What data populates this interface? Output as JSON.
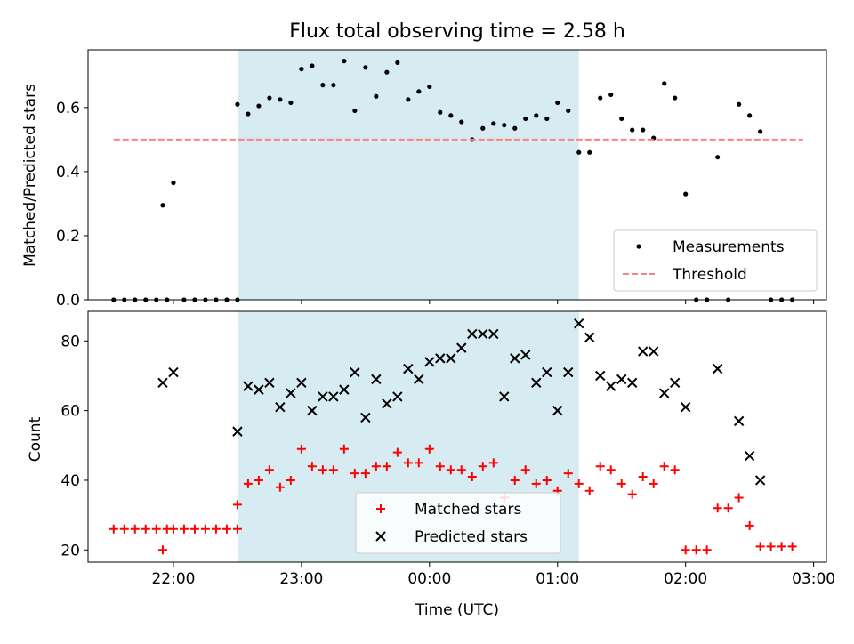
{
  "chart_data": [
    {
      "type": "scatter",
      "title": "Flux total observing time = 2.58 h",
      "xlabel": "",
      "ylabel": "Matched/Predicted stars",
      "ylim": [
        0,
        0.78
      ],
      "yticks": [
        "0.0",
        "0.2",
        "0.4",
        "0.6"
      ],
      "xlim": [
        "21:20",
        "03:06"
      ],
      "grid": false,
      "legend_placement": "lower-right",
      "shaded_span": [
        "22:30",
        "01:10"
      ],
      "shade_color": "#add8e6",
      "series": [
        {
          "name": "Measurements",
          "kind": "points",
          "color": "#000000",
          "points": [
            [
              "21:32",
              0.0
            ],
            [
              "21:37",
              0.0
            ],
            [
              "21:42",
              0.0
            ],
            [
              "21:47",
              0.0
            ],
            [
              "21:52",
              0.0
            ],
            [
              "21:57",
              0.0
            ],
            [
              "21:55",
              0.295
            ],
            [
              "22:00",
              0.365
            ],
            [
              "22:05",
              0.0
            ],
            [
              "22:10",
              0.0
            ],
            [
              "22:15",
              0.0
            ],
            [
              "22:20",
              0.0
            ],
            [
              "22:25",
              0.0
            ],
            [
              "22:30",
              0.0
            ],
            [
              "22:30",
              0.61
            ],
            [
              "22:35",
              0.58
            ],
            [
              "22:40",
              0.605
            ],
            [
              "22:45",
              0.63
            ],
            [
              "22:50",
              0.625
            ],
            [
              "22:55",
              0.615
            ],
            [
              "23:00",
              0.72
            ],
            [
              "23:05",
              0.73
            ],
            [
              "23:10",
              0.67
            ],
            [
              "23:15",
              0.67
            ],
            [
              "23:20",
              0.745
            ],
            [
              "23:25",
              0.59
            ],
            [
              "23:30",
              0.725
            ],
            [
              "23:35",
              0.635
            ],
            [
              "23:40",
              0.71
            ],
            [
              "23:45",
              0.74
            ],
            [
              "23:50",
              0.625
            ],
            [
              "23:55",
              0.65
            ],
            [
              "00:00",
              0.665
            ],
            [
              "00:05",
              0.585
            ],
            [
              "00:10",
              0.575
            ],
            [
              "00:15",
              0.555
            ],
            [
              "00:20",
              0.5
            ],
            [
              "00:25",
              0.535
            ],
            [
              "00:30",
              0.55
            ],
            [
              "00:35",
              0.545
            ],
            [
              "00:40",
              0.535
            ],
            [
              "00:45",
              0.565
            ],
            [
              "00:50",
              0.575
            ],
            [
              "00:55",
              0.565
            ],
            [
              "01:00",
              0.615
            ],
            [
              "01:05",
              0.59
            ],
            [
              "01:10",
              0.46
            ],
            [
              "01:15",
              0.46
            ],
            [
              "01:20",
              0.63
            ],
            [
              "01:25",
              0.64
            ],
            [
              "01:30",
              0.565
            ],
            [
              "01:35",
              0.53
            ],
            [
              "01:40",
              0.53
            ],
            [
              "01:45",
              0.505
            ],
            [
              "01:50",
              0.675
            ],
            [
              "01:55",
              0.63
            ],
            [
              "02:00",
              0.33
            ],
            [
              "02:05",
              0.0
            ],
            [
              "02:10",
              0.0
            ],
            [
              "02:15",
              0.445
            ],
            [
              "02:20",
              0.0
            ],
            [
              "02:25",
              0.61
            ],
            [
              "02:30",
              0.575
            ],
            [
              "02:35",
              0.525
            ],
            [
              "02:40",
              0.0
            ],
            [
              "02:45",
              0.0
            ],
            [
              "02:50",
              0.0
            ]
          ]
        },
        {
          "name": "Threshold",
          "kind": "dashed-line",
          "color": "#ff8080",
          "points": [
            [
              "21:32",
              0.5
            ],
            [
              "02:55",
              0.5
            ]
          ]
        }
      ]
    },
    {
      "type": "scatter",
      "title": "",
      "xlabel": "Time (UTC)",
      "ylabel": "Count",
      "ylim": [
        16.5,
        88.5
      ],
      "yticks": [
        "20",
        "40",
        "60",
        "80"
      ],
      "xlim": [
        "21:20",
        "03:06"
      ],
      "xticks": [
        "22:00",
        "23:00",
        "00:00",
        "01:00",
        "02:00",
        "03:00"
      ],
      "grid": false,
      "legend_placement": "lower-center",
      "shaded_span": [
        "22:30",
        "01:10"
      ],
      "shade_color": "#add8e6",
      "series": [
        {
          "name": "Matched stars",
          "kind": "plus",
          "color": "#ff0000",
          "points": [
            [
              "21:32",
              26
            ],
            [
              "21:37",
              26
            ],
            [
              "21:42",
              26
            ],
            [
              "21:47",
              26
            ],
            [
              "21:52",
              26
            ],
            [
              "21:57",
              26
            ],
            [
              "21:55",
              20
            ],
            [
              "22:00",
              26
            ],
            [
              "22:05",
              26
            ],
            [
              "22:10",
              26
            ],
            [
              "22:15",
              26
            ],
            [
              "22:20",
              26
            ],
            [
              "22:25",
              26
            ],
            [
              "22:30",
              26
            ],
            [
              "22:30",
              33
            ],
            [
              "22:35",
              39
            ],
            [
              "22:40",
              40
            ],
            [
              "22:45",
              43
            ],
            [
              "22:50",
              38
            ],
            [
              "22:55",
              40
            ],
            [
              "23:00",
              49
            ],
            [
              "23:05",
              44
            ],
            [
              "23:10",
              43
            ],
            [
              "23:15",
              43
            ],
            [
              "23:20",
              49
            ],
            [
              "23:25",
              42
            ],
            [
              "23:30",
              42
            ],
            [
              "23:35",
              44
            ],
            [
              "23:40",
              44
            ],
            [
              "23:45",
              48
            ],
            [
              "23:50",
              45
            ],
            [
              "23:55",
              45
            ],
            [
              "00:00",
              49
            ],
            [
              "00:05",
              44
            ],
            [
              "00:10",
              43
            ],
            [
              "00:15",
              43
            ],
            [
              "00:20",
              41
            ],
            [
              "00:25",
              44
            ],
            [
              "00:30",
              45
            ],
            [
              "00:35",
              35
            ],
            [
              "00:40",
              40
            ],
            [
              "00:45",
              43
            ],
            [
              "00:50",
              39
            ],
            [
              "00:55",
              40
            ],
            [
              "01:00",
              37
            ],
            [
              "01:05",
              42
            ],
            [
              "01:10",
              39
            ],
            [
              "01:15",
              37
            ],
            [
              "01:20",
              44
            ],
            [
              "01:25",
              43
            ],
            [
              "01:30",
              39
            ],
            [
              "01:35",
              36
            ],
            [
              "01:40",
              41
            ],
            [
              "01:45",
              39
            ],
            [
              "01:50",
              44
            ],
            [
              "01:55",
              43
            ],
            [
              "02:00",
              20
            ],
            [
              "02:05",
              20
            ],
            [
              "02:10",
              20
            ],
            [
              "02:15",
              32
            ],
            [
              "02:20",
              32
            ],
            [
              "02:25",
              35
            ],
            [
              "02:30",
              27
            ],
            [
              "02:35",
              21
            ],
            [
              "02:40",
              21
            ],
            [
              "02:45",
              21
            ],
            [
              "02:50",
              21
            ]
          ]
        },
        {
          "name": "Predicted stars",
          "kind": "cross",
          "color": "#000000",
          "points": [
            [
              "21:55",
              68
            ],
            [
              "22:00",
              71
            ],
            [
              "22:30",
              54
            ],
            [
              "22:35",
              67
            ],
            [
              "22:40",
              66
            ],
            [
              "22:45",
              68
            ],
            [
              "22:50",
              61
            ],
            [
              "22:55",
              65
            ],
            [
              "23:00",
              68
            ],
            [
              "23:05",
              60
            ],
            [
              "23:10",
              64
            ],
            [
              "23:15",
              64
            ],
            [
              "23:20",
              66
            ],
            [
              "23:25",
              71
            ],
            [
              "23:30",
              58
            ],
            [
              "23:35",
              69
            ],
            [
              "23:40",
              62
            ],
            [
              "23:45",
              64
            ],
            [
              "23:50",
              72
            ],
            [
              "23:55",
              69
            ],
            [
              "00:00",
              74
            ],
            [
              "00:05",
              75
            ],
            [
              "00:10",
              75
            ],
            [
              "00:15",
              78
            ],
            [
              "00:20",
              82
            ],
            [
              "00:25",
              82
            ],
            [
              "00:30",
              82
            ],
            [
              "00:35",
              64
            ],
            [
              "00:40",
              75
            ],
            [
              "00:45",
              76
            ],
            [
              "00:50",
              68
            ],
            [
              "00:55",
              71
            ],
            [
              "01:00",
              60
            ],
            [
              "01:05",
              71
            ],
            [
              "01:10",
              85
            ],
            [
              "01:15",
              81
            ],
            [
              "01:20",
              70
            ],
            [
              "01:25",
              67
            ],
            [
              "01:30",
              69
            ],
            [
              "01:35",
              68
            ],
            [
              "01:40",
              77
            ],
            [
              "01:45",
              77
            ],
            [
              "01:50",
              65
            ],
            [
              "01:55",
              68
            ],
            [
              "02:00",
              61
            ],
            [
              "02:15",
              72
            ],
            [
              "02:25",
              57
            ],
            [
              "02:30",
              47
            ],
            [
              "02:35",
              40
            ]
          ]
        }
      ]
    }
  ]
}
